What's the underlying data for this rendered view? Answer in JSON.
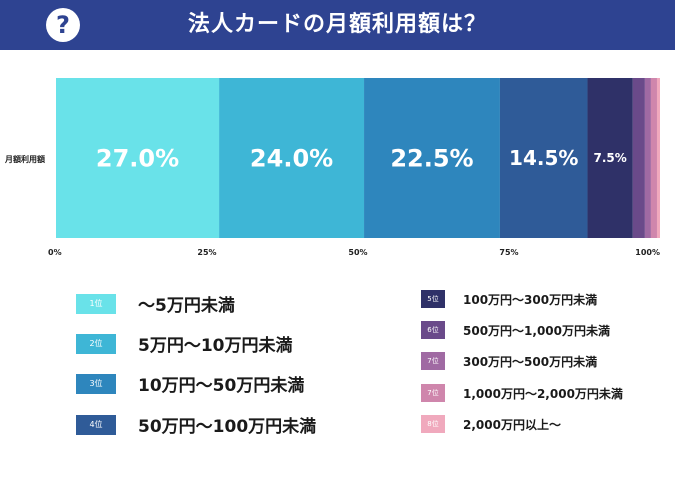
{
  "header": {
    "icon": "question-icon",
    "icon_glyph": "?",
    "title": "法人カードの月額利用額は？",
    "bg_color": "#2e4391"
  },
  "chart_data": {
    "type": "bar",
    "orientation": "horizontal-stacked-100",
    "title": "法人カードの月額利用額は？",
    "category": "月額利用額",
    "xlim": [
      0,
      100
    ],
    "x_ticks": [
      "0%",
      "25%",
      "50%",
      "75%",
      "100%"
    ],
    "series": [
      {
        "name": "〜5万円未満",
        "rank": "1位",
        "value": 27.0,
        "label": "27.0%",
        "color": "#69e2e9"
      },
      {
        "name": "5万円〜10万円未満",
        "rank": "2位",
        "value": 24.0,
        "label": "24.0%",
        "color": "#3eb6d6"
      },
      {
        "name": "10万円〜50万円未満",
        "rank": "3位",
        "value": 22.5,
        "label": "22.5%",
        "color": "#2e86bd"
      },
      {
        "name": "50万円〜100万円未満",
        "rank": "4位",
        "value": 14.5,
        "label": "14.5%",
        "color": "#2f5b98"
      },
      {
        "name": "100万円〜300万円未満",
        "rank": "5位",
        "value": 7.5,
        "label": "7.5%",
        "color": "#2f3168"
      },
      {
        "name": "500万円〜1,000万円未満",
        "rank": "6位",
        "value": 2.0,
        "label": "",
        "color": "#6a4a8a"
      },
      {
        "name": "300万円〜500万円未満",
        "rank": "7位",
        "value": 1.0,
        "label": "",
        "color": "#a06aa3"
      },
      {
        "name": "1,000万円〜2,000万円未満",
        "rank": "7位",
        "value": 1.0,
        "label": "",
        "color": "#cf86ac"
      },
      {
        "name": "2,000万円以上〜",
        "rank": "8位",
        "value": 0.5,
        "label": "",
        "color": "#f0a9bd"
      }
    ]
  }
}
